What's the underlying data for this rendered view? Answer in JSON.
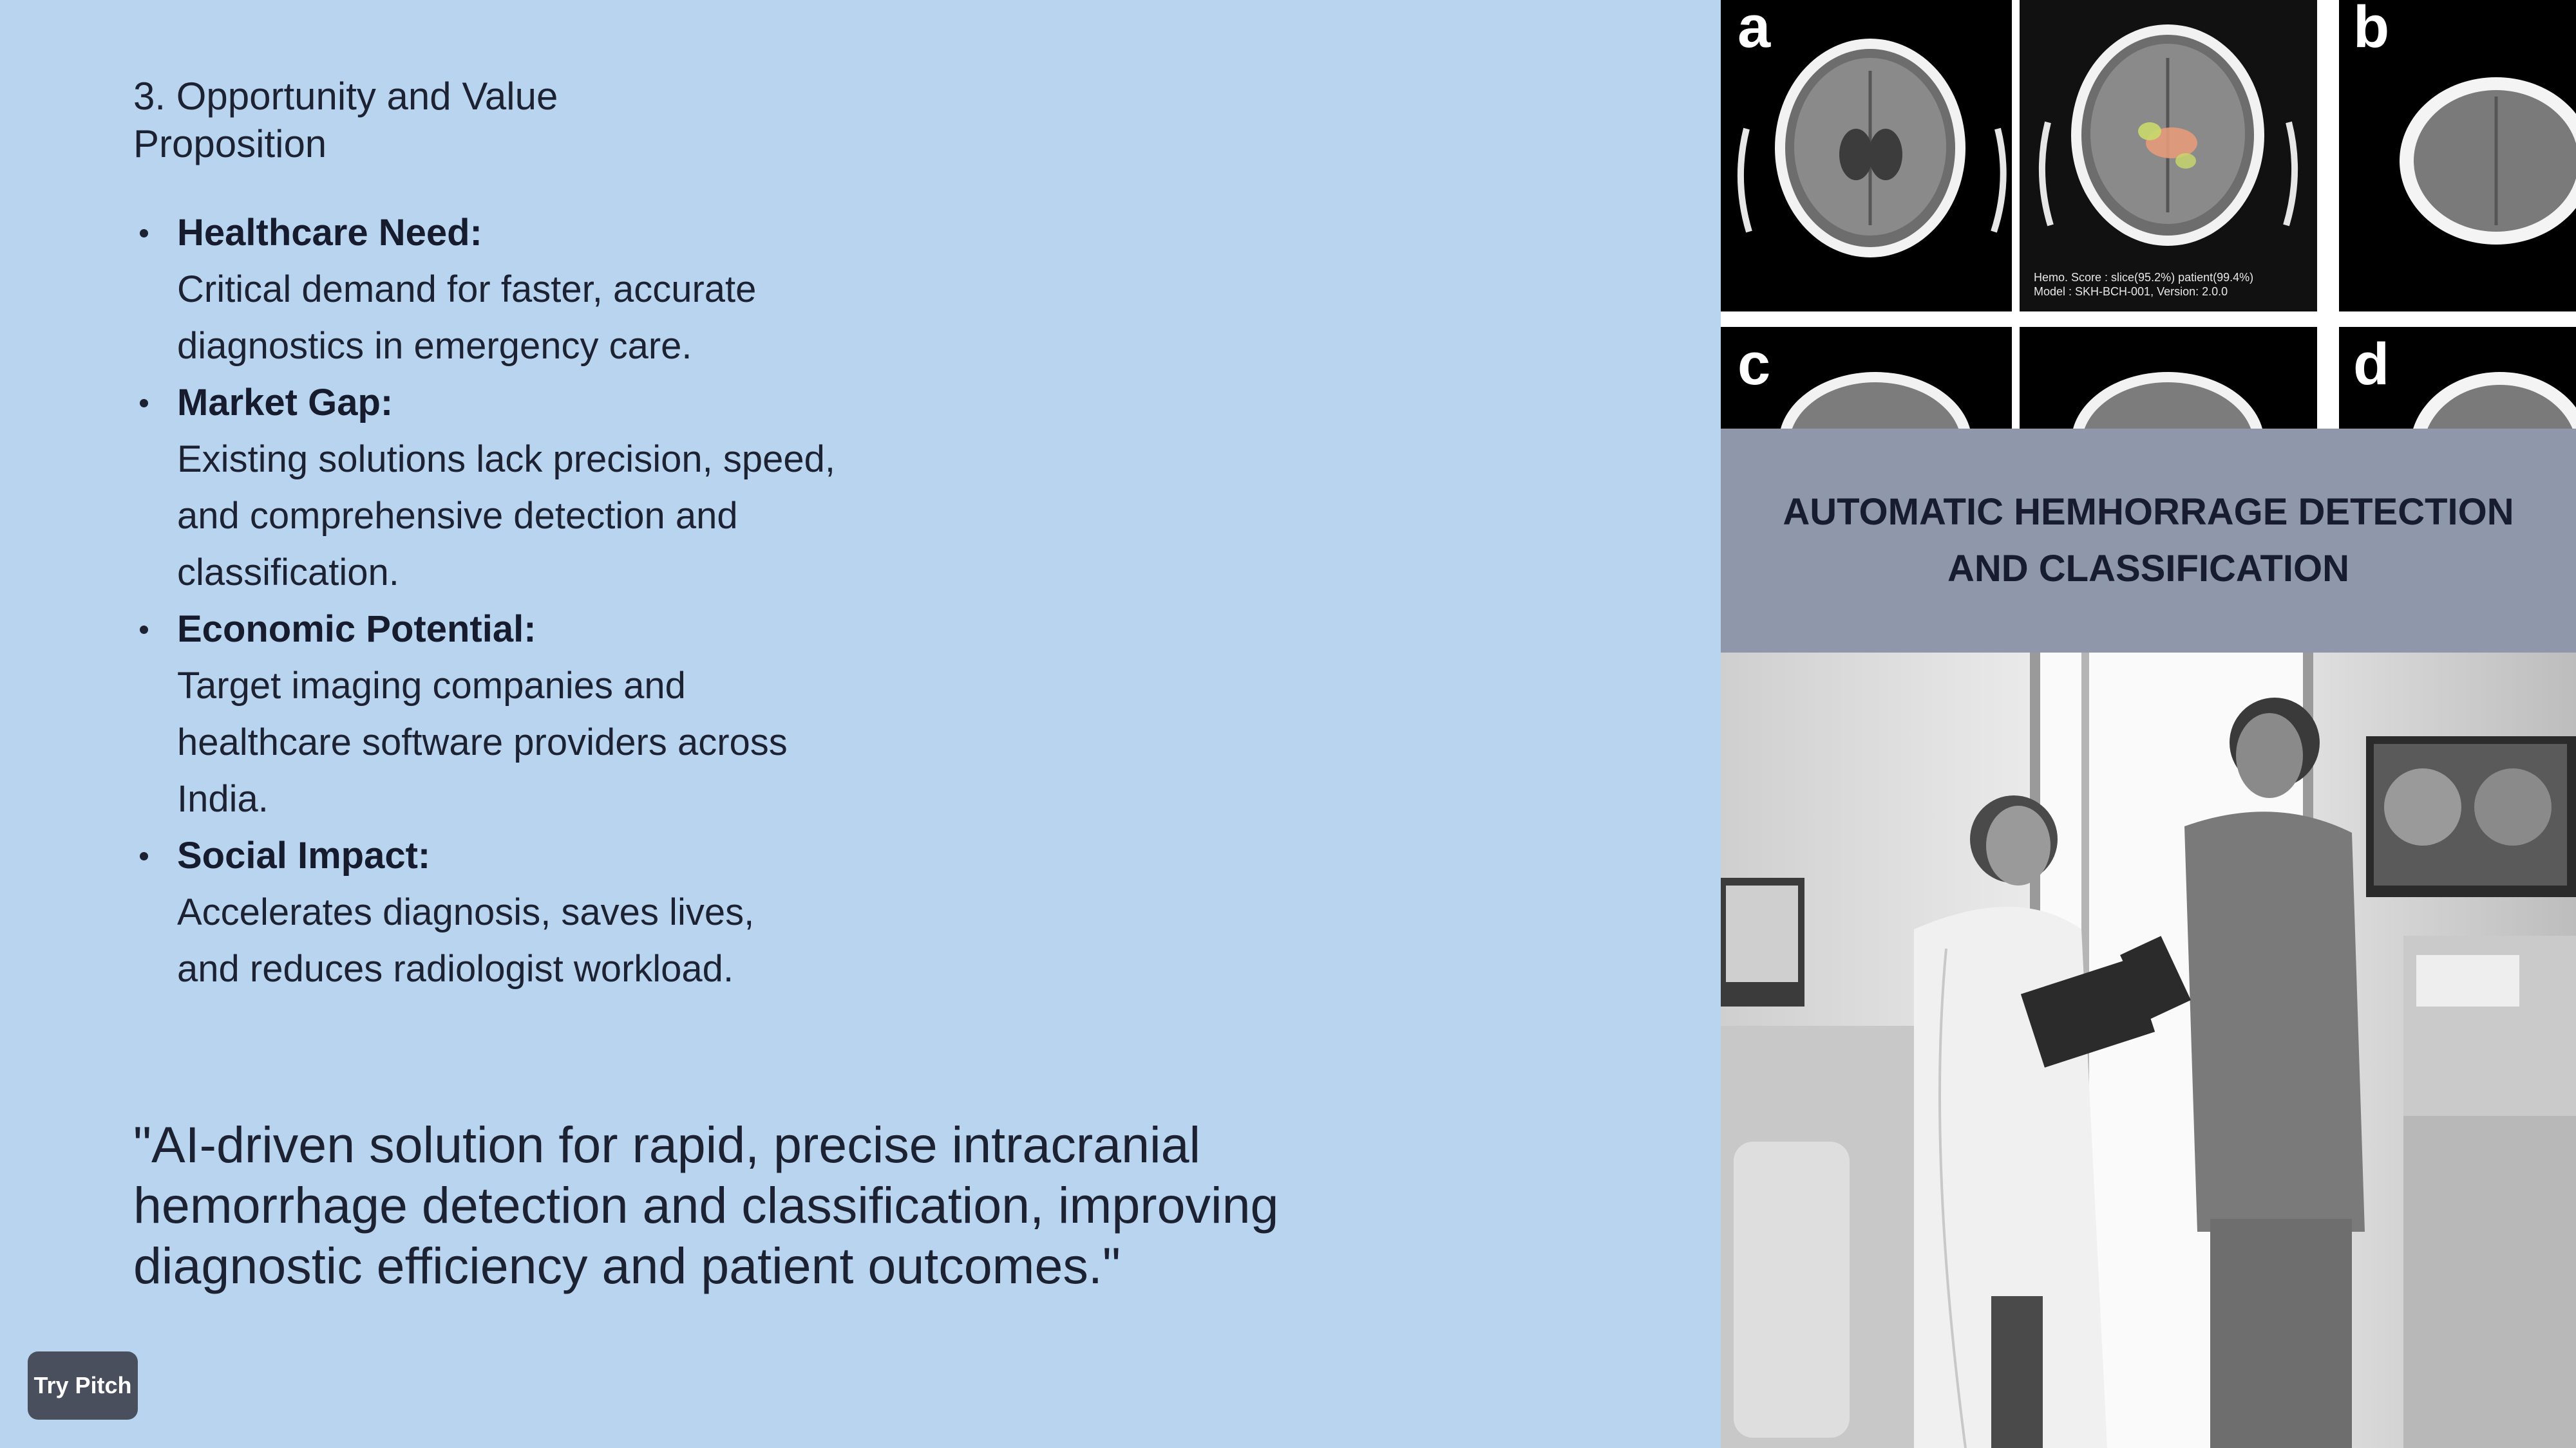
{
  "section_title": "3. Opportunity and Value Proposition",
  "bullets": [
    {
      "heading": "Healthcare Need:",
      "body": "Critical demand for faster, accurate diagnostics in emergency care."
    },
    {
      "heading": "Market Gap:",
      "body": "Existing solutions lack precision, speed, and comprehensive detection and classification."
    },
    {
      "heading": "Economic Potential:",
      "body": "Target imaging companies and healthcare software providers across India."
    },
    {
      "heading": "Social Impact:",
      "body": "Accelerates diagnosis, saves lives, and reduces radiologist workload."
    }
  ],
  "quote": "\"AI-driven solution for rapid, precise intracranial hemorrhage detection and classification, improving diagnostic efficiency and patient outcomes.\"",
  "try_pitch": "Try Pitch",
  "figure": {
    "labels": [
      "a",
      "b",
      "c",
      "d"
    ],
    "caption_line1": "Hemo. Score : slice(95.2%) patient(99.4%)",
    "caption_line2": "Model : SKH-BCH-001, Version: 2.0.0"
  },
  "right_title": "AUTOMATIC HEMHORRAGE DETECTION AND CLASSIFICATION",
  "colors": {
    "background": "#b9d4ef",
    "title_band": "#8f97aa",
    "button": "#4a4f5e",
    "text": "#1d2233"
  }
}
